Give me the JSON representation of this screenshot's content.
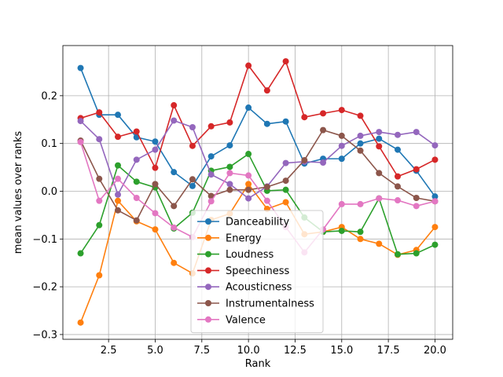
{
  "chart_data": {
    "type": "line",
    "title": "",
    "xlabel": "Rank",
    "ylabel": "mean values over ranks",
    "xlim": [
      0.05,
      20.95
    ],
    "ylim": [
      -0.31,
      0.305
    ],
    "grid": true,
    "legend_position": "lower-center",
    "x_ticks": [
      2.5,
      5.0,
      7.5,
      10.0,
      12.5,
      15.0,
      17.5,
      20.0
    ],
    "x_tick_labels": [
      "2.5",
      "5.0",
      "7.5",
      "10.0",
      "12.5",
      "15.0",
      "17.5",
      "20.0"
    ],
    "y_ticks": [
      -0.3,
      -0.2,
      -0.1,
      0.0,
      0.1,
      0.2
    ],
    "y_tick_labels": [
      "−0.3",
      "−0.2",
      "−0.1",
      "0.0",
      "0.1",
      "0.2"
    ],
    "x": [
      1,
      2,
      3,
      4,
      5,
      6,
      7,
      8,
      9,
      10,
      11,
      12,
      13,
      14,
      15,
      16,
      17,
      18,
      19,
      20
    ],
    "series": [
      {
        "name": "Danceability",
        "color": "#1f77b4",
        "values": [
          0.258,
          0.16,
          0.16,
          0.113,
          0.104,
          0.04,
          0.011,
          0.073,
          0.096,
          0.175,
          0.141,
          0.146,
          0.058,
          0.068,
          0.068,
          0.1,
          0.11,
          0.087,
          0.043,
          -0.011
        ]
      },
      {
        "name": "Energy",
        "color": "#ff7f0e",
        "values": [
          -0.275,
          -0.176,
          -0.02,
          -0.063,
          -0.08,
          -0.15,
          -0.172,
          -0.06,
          -0.047,
          0.015,
          -0.037,
          -0.023,
          -0.09,
          -0.085,
          -0.075,
          -0.1,
          -0.11,
          -0.133,
          -0.123,
          -0.075
        ]
      },
      {
        "name": "Loudness",
        "color": "#2ca02c",
        "values": [
          -0.13,
          -0.071,
          0.054,
          0.02,
          0.008,
          -0.078,
          -0.045,
          0.043,
          0.051,
          0.078,
          0.001,
          0.003,
          -0.055,
          -0.085,
          -0.083,
          -0.085,
          -0.015,
          -0.132,
          -0.13,
          -0.112
        ]
      },
      {
        "name": "Speechiness",
        "color": "#d62728",
        "values": [
          0.153,
          0.165,
          0.114,
          0.125,
          0.049,
          0.18,
          0.095,
          0.136,
          0.144,
          0.263,
          0.211,
          0.272,
          0.155,
          0.163,
          0.17,
          0.158,
          0.094,
          0.031,
          0.046,
          0.066
        ]
      },
      {
        "name": "Acousticness",
        "color": "#9467bd",
        "values": [
          0.147,
          0.109,
          -0.007,
          0.066,
          0.087,
          0.148,
          0.134,
          0.035,
          0.015,
          -0.015,
          0.01,
          0.059,
          0.062,
          0.06,
          0.095,
          0.116,
          0.124,
          0.118,
          0.124,
          0.096
        ]
      },
      {
        "name": "Instrumentalness",
        "color": "#8c564b",
        "values": [
          0.106,
          0.026,
          -0.04,
          -0.061,
          0.015,
          -0.031,
          0.025,
          -0.01,
          0.003,
          0.003,
          0.009,
          0.022,
          0.065,
          0.128,
          0.116,
          0.085,
          0.038,
          0.01,
          -0.014,
          -0.021
        ]
      },
      {
        "name": "Valence",
        "color": "#e377c2",
        "values": [
          0.103,
          -0.02,
          0.026,
          -0.014,
          -0.046,
          -0.076,
          -0.096,
          -0.021,
          0.038,
          0.033,
          -0.02,
          -0.075,
          -0.128,
          -0.08,
          -0.027,
          -0.027,
          -0.015,
          -0.019,
          -0.031,
          -0.021
        ]
      }
    ]
  }
}
